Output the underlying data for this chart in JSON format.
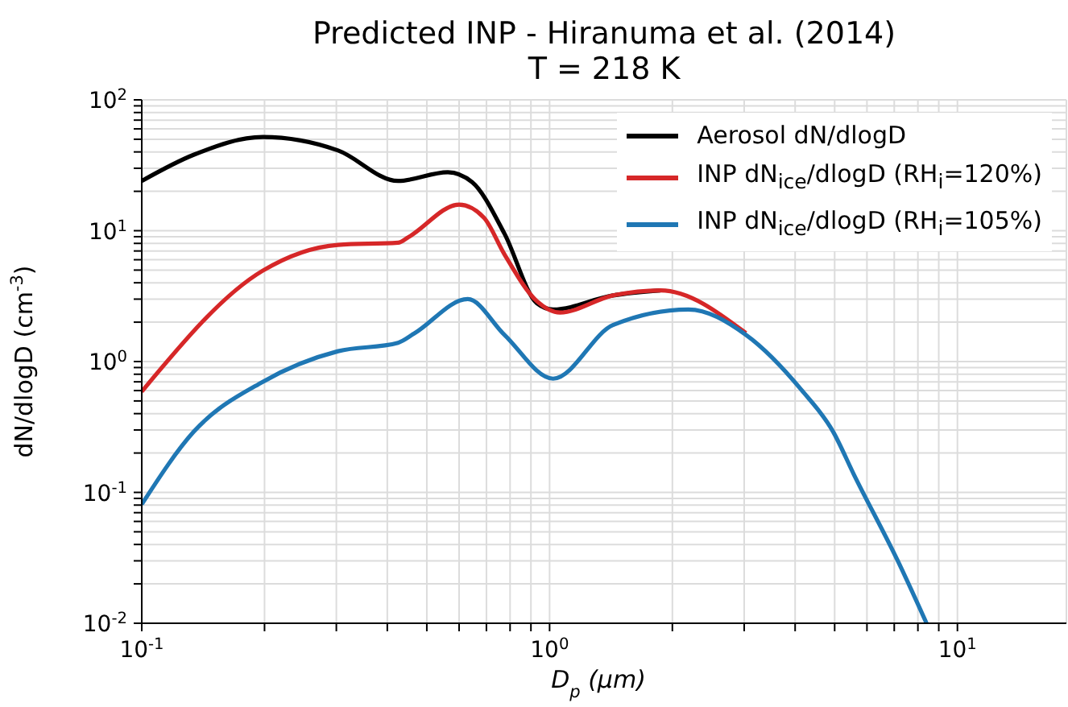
{
  "chart_data": {
    "type": "line",
    "title": "Predicted INP - Hiranuma et al. (2014)",
    "subtitle": "T = 218 K",
    "xlabel": "D$_{p}$ (μm)",
    "ylabel": "dN/dlogD (cm$^{-3}$)",
    "log": "xy",
    "grid": true,
    "legend": "top right",
    "line_style": "solid",
    "marker": "none",
    "xlim": [
      0.1,
      18.5
    ],
    "xticks": [
      {
        "value": 0.1,
        "label": "10$^{-1}$"
      },
      {
        "value": 0.2,
        "label": null
      },
      {
        "value": 0.3,
        "label": null
      },
      {
        "value": 0.4,
        "label": null
      },
      {
        "value": 0.5,
        "label": null
      },
      {
        "value": 0.6,
        "label": null
      },
      {
        "value": 0.7,
        "label": null
      },
      {
        "value": 0.8,
        "label": null
      },
      {
        "value": 0.9,
        "label": null
      },
      {
        "value": 1,
        "label": "10$^{0}$"
      },
      {
        "value": 2,
        "label": null
      },
      {
        "value": 3,
        "label": null
      },
      {
        "value": 4,
        "label": null
      },
      {
        "value": 5,
        "label": null
      },
      {
        "value": 6,
        "label": null
      },
      {
        "value": 7,
        "label": null
      },
      {
        "value": 8,
        "label": null
      },
      {
        "value": 9,
        "label": null
      },
      {
        "value": 10,
        "label": "10$^{1}$"
      }
    ],
    "ylim": [
      0.01,
      100
    ],
    "yticks": [
      {
        "value": 0.01,
        "label": "10$^{-2}$"
      },
      {
        "value": 0.02,
        "label": null
      },
      {
        "value": 0.03,
        "label": null
      },
      {
        "value": 0.04,
        "label": null
      },
      {
        "value": 0.05,
        "label": null
      },
      {
        "value": 0.06,
        "label": null
      },
      {
        "value": 0.07,
        "label": null
      },
      {
        "value": 0.08,
        "label": null
      },
      {
        "value": 0.09,
        "label": null
      },
      {
        "value": 0.1,
        "label": "10$^{-1}$"
      },
      {
        "value": 0.2,
        "label": null
      },
      {
        "value": 0.3,
        "label": null
      },
      {
        "value": 0.4,
        "label": null
      },
      {
        "value": 0.5,
        "label": null
      },
      {
        "value": 0.6,
        "label": null
      },
      {
        "value": 0.7,
        "label": null
      },
      {
        "value": 0.8,
        "label": null
      },
      {
        "value": 0.9,
        "label": null
      },
      {
        "value": 1,
        "label": "10$^{0}$"
      },
      {
        "value": 2,
        "label": null
      },
      {
        "value": 3,
        "label": null
      },
      {
        "value": 4,
        "label": null
      },
      {
        "value": 5,
        "label": null
      },
      {
        "value": 6,
        "label": null
      },
      {
        "value": 7,
        "label": null
      },
      {
        "value": 8,
        "label": null
      },
      {
        "value": 9,
        "label": null
      },
      {
        "value": 10,
        "label": "10$^{1}$"
      },
      {
        "value": 20,
        "label": null
      },
      {
        "value": 30,
        "label": null
      },
      {
        "value": 40,
        "label": null
      },
      {
        "value": 50,
        "label": null
      },
      {
        "value": 60,
        "label": null
      },
      {
        "value": 70,
        "label": null
      },
      {
        "value": 80,
        "label": null
      },
      {
        "value": 90,
        "label": null
      },
      {
        "value": 100,
        "label": "10$^{2}$"
      }
    ],
    "series": [
      {
        "name": "Aerosol dN/dlogD",
        "color": "#000000",
        "x": [
          0.1,
          0.134,
          0.198,
          0.303,
          0.425,
          0.563,
          0.646,
          0.775,
          0.93,
          1.02,
          1.43,
          1.87
        ],
        "values": [
          24,
          38,
          52,
          41,
          24,
          28,
          23.5,
          9.5,
          2.8,
          2.5,
          3.2,
          3.5
        ]
      },
      {
        "name": "INP dN$_{ice}$/dlogD (RH$_{i}$=120%)",
        "color": "#d62728",
        "x": [
          0.1,
          0.198,
          0.303,
          0.425,
          0.45,
          0.6,
          0.69,
          0.775,
          0.93,
          1.06,
          1.43,
          1.87,
          3.03
        ],
        "values": [
          0.59,
          4.95,
          7.8,
          8.1,
          8.9,
          15.8,
          12.6,
          6.6,
          2.9,
          2.37,
          3.2,
          3.5,
          1.65
        ]
      },
      {
        "name": "INP dN$_{ice}$/dlogD (RH$_{i}$=105%)",
        "color": "#1f77b4",
        "x": [
          0.1,
          0.134,
          0.198,
          0.303,
          0.425,
          0.466,
          0.63,
          0.775,
          1.02,
          1.43,
          2.19,
          3.03,
          4.14,
          4.96,
          5.58,
          7.14,
          8.4
        ],
        "values": [
          0.081,
          0.29,
          0.7,
          1.2,
          1.39,
          1.64,
          3.0,
          1.6,
          0.74,
          1.9,
          2.5,
          1.6,
          0.61,
          0.29,
          0.136,
          0.03,
          0.01
        ]
      }
    ]
  }
}
